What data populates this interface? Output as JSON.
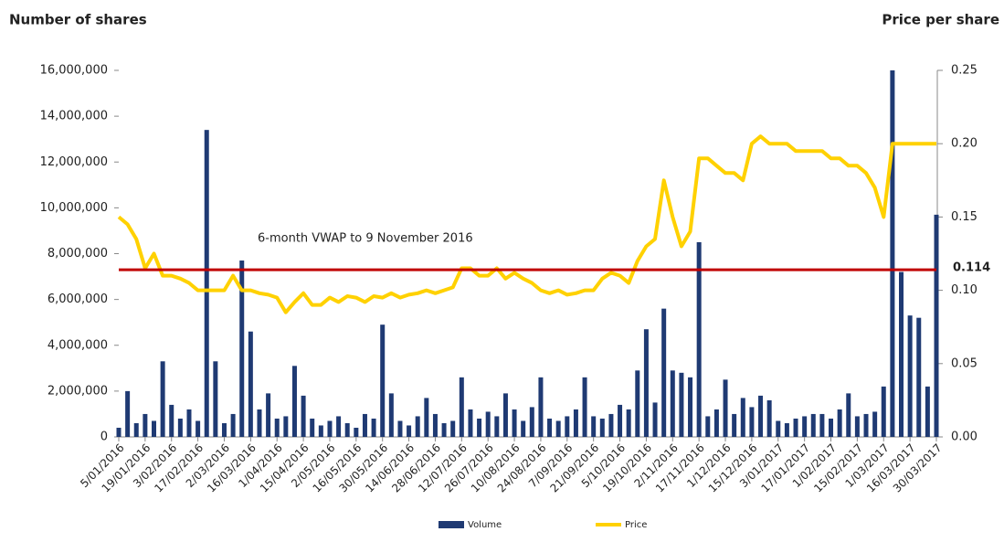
{
  "chart_data": {
    "type": "bar_line",
    "y_axis_label": "Number of shares",
    "y2_axis_label": "Price per share",
    "annotation": "6-month VWAP to 9 November 2016",
    "reference_line": {
      "value": 0.114,
      "color": "#c00000",
      "axis": "y2"
    },
    "categories": [
      "5/01/2016",
      null,
      null,
      "19/01/2016",
      null,
      null,
      "3/02/2016",
      null,
      null,
      "17/02/2016",
      null,
      null,
      "2/03/2016",
      null,
      null,
      "16/03/2016",
      null,
      null,
      "1/04/2016",
      null,
      null,
      "15/04/2016",
      null,
      null,
      "2/05/2016",
      null,
      null,
      "16/05/2016",
      null,
      null,
      "30/05/2016",
      null,
      null,
      "14/06/2016",
      null,
      null,
      "28/06/2016",
      null,
      null,
      "12/07/2016",
      null,
      null,
      "26/07/2016",
      null,
      null,
      "10/08/2016",
      null,
      null,
      "24/08/2016",
      null,
      null,
      "7/09/2016",
      null,
      null,
      "21/09/2016",
      null,
      null,
      "5/10/2016",
      null,
      null,
      "19/10/2016",
      null,
      null,
      "2/11/2016",
      null,
      null,
      "17/11/2016",
      null,
      null,
      "1/12/2016",
      null,
      null,
      "15/12/2016",
      null,
      null,
      "3/01/2017",
      null,
      null,
      "17/01/2017",
      null,
      null,
      "1/02/2017",
      null,
      null,
      "15/02/2017",
      null,
      null,
      "1/03/2017",
      null,
      null,
      "16/03/2017",
      null,
      null,
      "30/03/2017"
    ],
    "series": [
      {
        "name": "Volume",
        "color": "#1f3a73",
        "type": "bar",
        "values": [
          400000,
          2000000,
          600000,
          1000000,
          700000,
          3300000,
          1400000,
          800000,
          1200000,
          700000,
          13400000,
          3300000,
          600000,
          1000000,
          7700000,
          4600000,
          1200000,
          1900000,
          800000,
          900000,
          3100000,
          1800000,
          800000,
          500000,
          700000,
          900000,
          600000,
          400000,
          1000000,
          800000,
          4900000,
          1900000,
          700000,
          500000,
          900000,
          1700000,
          1000000,
          600000,
          700000,
          2600000,
          1200000,
          800000,
          1100000,
          900000,
          1900000,
          1200000,
          700000,
          1300000,
          2600000,
          800000,
          700000,
          900000,
          1200000,
          2600000,
          900000,
          800000,
          1000000,
          1400000,
          1200000,
          2900000,
          4700000,
          1500000,
          5600000,
          2900000,
          2800000,
          2600000,
          8500000,
          900000,
          1200000,
          2500000,
          1000000,
          1700000,
          1300000,
          1800000,
          1600000,
          700000,
          600000,
          800000,
          900000,
          1000000,
          1000000,
          800000,
          1200000,
          1900000,
          900000,
          1000000,
          1100000,
          2200000,
          16000000,
          7200000,
          5300000,
          5200000,
          2200000,
          9700000
        ]
      },
      {
        "name": "Price",
        "color": "#ffd100",
        "type": "line",
        "axis": "y2",
        "values": [
          0.15,
          0.145,
          0.135,
          0.115,
          0.125,
          0.11,
          0.11,
          0.108,
          0.105,
          0.1,
          0.1,
          0.1,
          0.1,
          0.11,
          0.1,
          0.1,
          0.098,
          0.097,
          0.095,
          0.085,
          0.092,
          0.098,
          0.09,
          0.09,
          0.095,
          0.092,
          0.096,
          0.095,
          0.092,
          0.096,
          0.095,
          0.098,
          0.095,
          0.097,
          0.098,
          0.1,
          0.098,
          0.1,
          0.102,
          0.115,
          0.115,
          0.11,
          0.11,
          0.115,
          0.108,
          0.112,
          0.108,
          0.105,
          0.1,
          0.098,
          0.1,
          0.097,
          0.098,
          0.1,
          0.1,
          0.108,
          0.112,
          0.11,
          0.105,
          0.12,
          0.13,
          0.135,
          0.175,
          0.15,
          0.13,
          0.14,
          0.19,
          0.19,
          0.185,
          0.18,
          0.18,
          0.175,
          0.2,
          0.205,
          0.2,
          0.2,
          0.2,
          0.195,
          0.195,
          0.195,
          0.195,
          0.19,
          0.19,
          0.185,
          0.185,
          0.18,
          0.17,
          0.15,
          0.2,
          0.2,
          0.2,
          0.2,
          0.2,
          0.2
        ]
      }
    ],
    "ylim": [
      0,
      16000000
    ],
    "yticks": [
      0,
      {
        "value": 2000000,
        "label": "2,000,000"
      },
      {
        "value": 4000000,
        "label": "4,000,000"
      },
      {
        "value": 6000000,
        "label": "6,000,000"
      },
      {
        "value": 8000000,
        "label": "8,000,000"
      },
      {
        "value": 10000000,
        "label": "10,000,000"
      },
      {
        "value": 12000000,
        "label": "12,000,000"
      },
      {
        "value": 14000000,
        "label": "14,000,000"
      },
      {
        "value": 16000000,
        "label": "16,000,000"
      }
    ],
    "y2lim": [
      0,
      0.25
    ],
    "y2ticks": [
      {
        "value": 0,
        "label": "0.00"
      },
      0.05,
      {
        "value": 0.1,
        "label": "0.10"
      },
      0.15,
      {
        "value": 0.2,
        "label": "0.20"
      },
      0.25
    ],
    "legend": "bottom"
  }
}
